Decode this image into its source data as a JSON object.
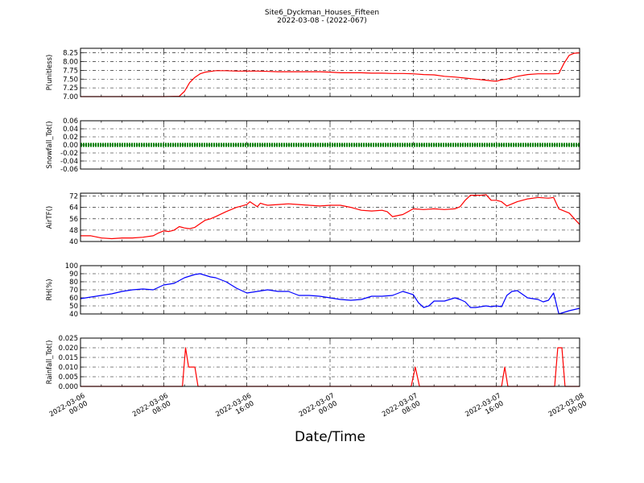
{
  "title": "Site6_Dyckman_Houses_Fifteen",
  "subtitle": "2022-03-08 - (2022-067)",
  "xlabel": "Date/Time",
  "x_ticks": [
    "2022-03-06\n00:00",
    "2022-03-06\n08:00",
    "2022-03-06\n16:00",
    "2022-03-07\n00:00",
    "2022-03-07\n08:00",
    "2022-03-07\n16:00",
    "2022-03-08\n00:00"
  ],
  "colors": {
    "red": "#ff0000",
    "green": "#008000",
    "blue": "#0000ff"
  },
  "chart_data": [
    {
      "type": "line",
      "ylabel": "P(unitless)",
      "ylim": [
        7.0,
        8.38
      ],
      "yticks": [
        "7.00",
        "7.25",
        "7.50",
        "7.75",
        "8.00",
        "8.25"
      ],
      "ytick_values": [
        7.0,
        7.25,
        7.5,
        7.75,
        8.0,
        8.25
      ],
      "grid": true,
      "series": [
        {
          "color": "red",
          "x_hours": [
            0,
            8,
            9.5,
            10,
            10.5,
            11,
            11.5,
            12,
            13,
            14,
            15,
            16,
            17,
            18,
            19,
            20,
            21,
            22,
            23,
            24,
            25,
            26,
            27,
            28,
            29,
            30,
            31,
            32,
            33,
            34,
            35,
            36,
            37,
            38,
            39,
            39.5,
            40,
            40.5,
            41,
            42,
            43,
            44,
            45,
            45.5,
            46,
            46.5,
            47,
            47.5,
            48
          ],
          "y": [
            7.0,
            7.0,
            7.01,
            7.15,
            7.4,
            7.55,
            7.65,
            7.7,
            7.74,
            7.74,
            7.73,
            7.73,
            7.73,
            7.72,
            7.71,
            7.71,
            7.71,
            7.71,
            7.71,
            7.7,
            7.68,
            7.68,
            7.68,
            7.67,
            7.67,
            7.66,
            7.66,
            7.65,
            7.63,
            7.62,
            7.58,
            7.56,
            7.53,
            7.5,
            7.47,
            7.45,
            7.44,
            7.48,
            7.5,
            7.58,
            7.63,
            7.65,
            7.65,
            7.65,
            7.66,
            7.95,
            8.18,
            8.24,
            8.25
          ]
        }
      ]
    },
    {
      "type": "line",
      "ylabel": "Snowfall_Tot()",
      "ylim": [
        -0.06,
        0.06
      ],
      "yticks": [
        "-0.06",
        "-0.04",
        "-0.02",
        "0.00",
        "0.02",
        "0.04",
        "0.06"
      ],
      "ytick_values": [
        -0.06,
        -0.04,
        -0.02,
        0.0,
        0.02,
        0.04,
        0.06
      ],
      "grid": true,
      "series": [
        {
          "color": "green",
          "marker": "dots",
          "x_hours": [
            0,
            48
          ],
          "y": [
            0.0,
            0.0
          ]
        }
      ]
    },
    {
      "type": "line",
      "ylabel": "AirTF()",
      "ylim": [
        40,
        74
      ],
      "yticks": [
        "40",
        "48",
        "56",
        "64",
        "72"
      ],
      "ytick_values": [
        40,
        48,
        56,
        64,
        72
      ],
      "grid": true,
      "series": [
        {
          "color": "red",
          "x_hours": [
            0,
            1,
            2,
            3,
            4,
            5,
            6,
            7,
            7.5,
            8,
            8.5,
            9,
            9.5,
            10,
            10.5,
            11,
            11.5,
            12,
            12.5,
            13,
            14,
            15,
            15.5,
            16,
            16.3,
            16.7,
            17,
            17.3,
            17.7,
            18,
            19,
            20,
            21,
            22,
            23,
            24,
            25,
            26,
            27,
            28,
            29,
            29.5,
            30,
            31,
            32,
            33,
            34,
            35,
            36,
            36.5,
            37,
            37.5,
            38,
            38.5,
            39,
            39.5,
            40,
            40.5,
            41,
            42,
            43,
            44,
            45,
            45.5,
            46,
            47,
            48
          ],
          "y": [
            44,
            44,
            42.5,
            42,
            42.5,
            42.5,
            43,
            44,
            46,
            47.5,
            47,
            48,
            50.5,
            49.5,
            49,
            50,
            52.5,
            55,
            56,
            57.5,
            61,
            64,
            65,
            66,
            68,
            66,
            64.5,
            67,
            66,
            65.5,
            66,
            66.5,
            66,
            65.5,
            65,
            65.5,
            65.5,
            64,
            62,
            61.5,
            62,
            61,
            57.5,
            59,
            63,
            62.5,
            63,
            62.5,
            63,
            64.5,
            69,
            72.5,
            72.5,
            72.5,
            73,
            69,
            69,
            68,
            65,
            68,
            70,
            71,
            70.5,
            71,
            63,
            60,
            52
          ]
        }
      ]
    },
    {
      "type": "line",
      "ylabel": "RH(%)",
      "ylim": [
        40,
        100
      ],
      "yticks": [
        "40",
        "50",
        "60",
        "70",
        "80",
        "90",
        "100"
      ],
      "ytick_values": [
        40,
        50,
        60,
        70,
        80,
        90,
        100
      ],
      "grid": true,
      "series": [
        {
          "color": "blue",
          "x_hours": [
            0,
            1,
            2,
            3,
            4,
            5,
            6,
            7,
            8,
            9,
            10,
            10.5,
            11,
            11.5,
            12,
            12.5,
            13,
            14,
            15,
            16,
            17,
            18,
            19,
            20,
            21,
            22,
            23,
            24,
            25,
            26,
            27,
            28,
            29,
            30,
            31,
            32,
            32.5,
            33,
            33.5,
            34,
            35,
            36,
            36.5,
            37,
            37.5,
            38,
            39,
            39.5,
            40,
            40.5,
            41,
            41.5,
            42,
            43,
            44,
            44.5,
            45,
            45.5,
            46,
            47,
            48
          ],
          "y": [
            59,
            61,
            63,
            65,
            68,
            70,
            71,
            70,
            76,
            78,
            85,
            87,
            89,
            90,
            88,
            86,
            85,
            80,
            72,
            66,
            68,
            70,
            68,
            68,
            63,
            63,
            62,
            60,
            58,
            57,
            58,
            62,
            62,
            63,
            68,
            64,
            54,
            48,
            50,
            56,
            56,
            60,
            58,
            55,
            48,
            48,
            50,
            49,
            50,
            49,
            63,
            68,
            69,
            60,
            58,
            55,
            57,
            66,
            40,
            44,
            47
          ]
        }
      ]
    },
    {
      "type": "line",
      "ylabel": "Rainfall_Tot()",
      "ylim": [
        0,
        0.025
      ],
      "yticks": [
        "0.000",
        "0.005",
        "0.010",
        "0.015",
        "0.020",
        "0.025"
      ],
      "ytick_values": [
        0.0,
        0.005,
        0.01,
        0.015,
        0.02,
        0.025
      ],
      "grid": true,
      "series": [
        {
          "color": "red",
          "x_hours": [
            0,
            9.8,
            10.1,
            10.4,
            10.7,
            11.0,
            11.3,
            31.8,
            32.2,
            32.6,
            40.5,
            40.8,
            41.1,
            45.6,
            45.9,
            46.3,
            46.6,
            48
          ],
          "y": [
            0,
            0,
            0.02,
            0.01,
            0.01,
            0.01,
            0,
            0,
            0.01,
            0,
            0,
            0.01,
            0,
            0,
            0.02,
            0.02,
            0,
            0
          ]
        }
      ]
    }
  ]
}
